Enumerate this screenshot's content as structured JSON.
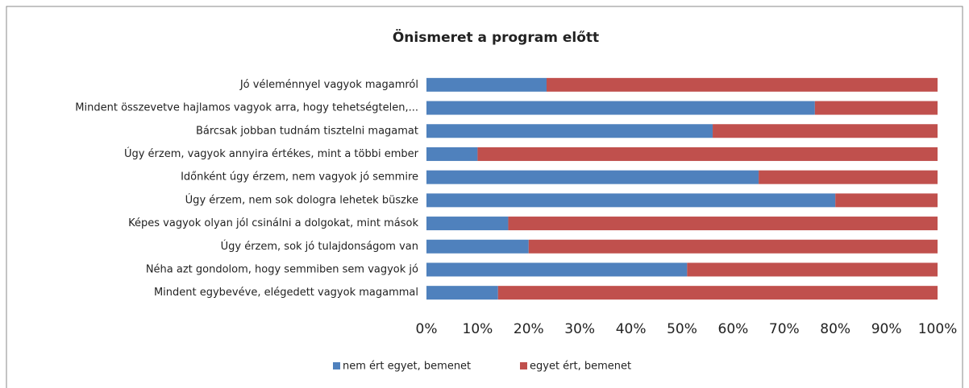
{
  "chart_data": {
    "type": "stacked_bar_horizontal",
    "title": "Önismeret a program előtt",
    "categories": [
      "Jó véleménnyel vagyok magamról",
      "Mindent összevetve hajlamos vagyok arra, hogy tehetségtelen,...",
      "Bárcsak jobban tudnám tisztelni magamat",
      "Úgy érzem, vagyok annyira értékes, mint a többi ember",
      "Időnként úgy érzem, nem vagyok jó semmire",
      "Úgy érzem, nem sok dologra lehetek büszke",
      "Képes vagyok olyan jól csinálni a dolgokat, mint mások",
      "Úgy érzem, sok jó tulajdonságom van",
      "Néha azt gondolom, hogy semmiben sem vagyok jó",
      "Mindent egybevéve, elégedett vagyok magammal"
    ],
    "series": [
      {
        "name": "nem ért egyet, bemenet",
        "color": "#4f81bd",
        "values": [
          23.5,
          76,
          56,
          10,
          65,
          80,
          16,
          20,
          51,
          14
        ]
      },
      {
        "name": "egyet ért, bemenet",
        "color": "#c0504d",
        "values": [
          76.5,
          24,
          44,
          90,
          35,
          20,
          84,
          80,
          49,
          86
        ]
      }
    ],
    "xlim": [
      0,
      100
    ],
    "xticks": [
      {
        "value": 0,
        "label": "0%"
      },
      {
        "value": 10,
        "label": "10%"
      },
      {
        "value": 20,
        "label": "20%"
      },
      {
        "value": 30,
        "label": "30%"
      },
      {
        "value": 40,
        "label": "40%"
      },
      {
        "value": 50,
        "label": "50%"
      },
      {
        "value": 60,
        "label": "60%"
      },
      {
        "value": 70,
        "label": "70%"
      },
      {
        "value": 80,
        "label": "80%"
      },
      {
        "value": 90,
        "label": "90%"
      },
      {
        "value": 100,
        "label": "100%"
      }
    ],
    "legend": "bottom"
  }
}
